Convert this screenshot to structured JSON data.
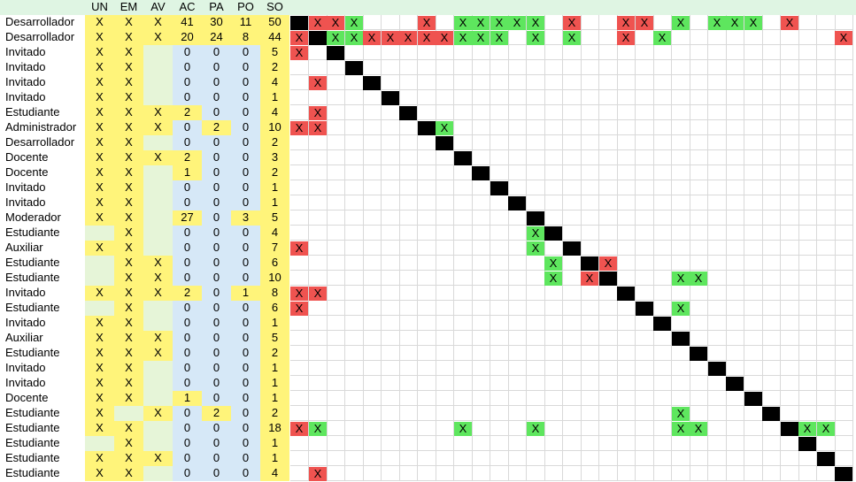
{
  "colors": {
    "header_bg": "#dff5e3",
    "flag_yes": "#fff47a",
    "flag_no": "#e6f5d8",
    "stat_pos": "#fff47a",
    "stat_zero": "#d6e8f7",
    "so_col": "#fff47a",
    "diag": "#000000",
    "red": "#ef5350",
    "green": "#5ee65e",
    "gridline": "#d9d9d9"
  },
  "headers": [
    "UN",
    "EM",
    "AV",
    "AC",
    "PA",
    "PO",
    "SO"
  ],
  "rows": [
    {
      "role": "Desarrollador",
      "un": "X",
      "em": "X",
      "av": "X",
      "ac": "41",
      "pa": "30",
      "po": "11",
      "so": "50"
    },
    {
      "role": "Desarrollador",
      "un": "X",
      "em": "X",
      "av": "X",
      "ac": "20",
      "pa": "24",
      "po": "8",
      "so": "44"
    },
    {
      "role": "Invitado",
      "un": "X",
      "em": "X",
      "av": "",
      "ac": "0",
      "pa": "0",
      "po": "0",
      "so": "5"
    },
    {
      "role": "Invitado",
      "un": "X",
      "em": "X",
      "av": "",
      "ac": "0",
      "pa": "0",
      "po": "0",
      "so": "2"
    },
    {
      "role": "Invitado",
      "un": "X",
      "em": "X",
      "av": "",
      "ac": "0",
      "pa": "0",
      "po": "0",
      "so": "4"
    },
    {
      "role": "Invitado",
      "un": "X",
      "em": "X",
      "av": "",
      "ac": "0",
      "pa": "0",
      "po": "0",
      "so": "1"
    },
    {
      "role": "Estudiante",
      "un": "X",
      "em": "X",
      "av": "X",
      "ac": "2",
      "pa": "0",
      "po": "0",
      "so": "4"
    },
    {
      "role": "Administrador",
      "un": "X",
      "em": "X",
      "av": "X",
      "ac": "0",
      "pa": "2",
      "po": "0",
      "so": "10"
    },
    {
      "role": "Desarrollador",
      "un": "X",
      "em": "X",
      "av": "",
      "ac": "0",
      "pa": "0",
      "po": "0",
      "so": "2"
    },
    {
      "role": "Docente",
      "un": "X",
      "em": "X",
      "av": "X",
      "ac": "2",
      "pa": "0",
      "po": "0",
      "so": "3"
    },
    {
      "role": "Docente",
      "un": "X",
      "em": "X",
      "av": "",
      "ac": "1",
      "pa": "0",
      "po": "0",
      "so": "2"
    },
    {
      "role": "Invitado",
      "un": "X",
      "em": "X",
      "av": "",
      "ac": "0",
      "pa": "0",
      "po": "0",
      "so": "1"
    },
    {
      "role": "Invitado",
      "un": "X",
      "em": "X",
      "av": "",
      "ac": "0",
      "pa": "0",
      "po": "0",
      "so": "1"
    },
    {
      "role": "Moderador",
      "un": "X",
      "em": "X",
      "av": "",
      "ac": "27",
      "pa": "0",
      "po": "3",
      "so": "5"
    },
    {
      "role": "Estudiante",
      "un": "",
      "em": "X",
      "av": "",
      "ac": "0",
      "pa": "0",
      "po": "0",
      "so": "4"
    },
    {
      "role": "Auxiliar",
      "un": "X",
      "em": "X",
      "av": "",
      "ac": "0",
      "pa": "0",
      "po": "0",
      "so": "7"
    },
    {
      "role": "Estudiante",
      "un": "",
      "em": "X",
      "av": "X",
      "ac": "0",
      "pa": "0",
      "po": "0",
      "so": "6"
    },
    {
      "role": "Estudiante",
      "un": "",
      "em": "X",
      "av": "X",
      "ac": "0",
      "pa": "0",
      "po": "0",
      "so": "10"
    },
    {
      "role": "Invitado",
      "un": "X",
      "em": "X",
      "av": "X",
      "ac": "2",
      "pa": "0",
      "po": "1",
      "so": "8"
    },
    {
      "role": "Estudiante",
      "un": "",
      "em": "X",
      "av": "",
      "ac": "0",
      "pa": "0",
      "po": "0",
      "so": "6"
    },
    {
      "role": "Invitado",
      "un": "X",
      "em": "X",
      "av": "",
      "ac": "0",
      "pa": "0",
      "po": "0",
      "so": "1"
    },
    {
      "role": "Auxiliar",
      "un": "X",
      "em": "X",
      "av": "X",
      "ac": "0",
      "pa": "0",
      "po": "0",
      "so": "5"
    },
    {
      "role": "Estudiante",
      "un": "X",
      "em": "X",
      "av": "X",
      "ac": "0",
      "pa": "0",
      "po": "0",
      "so": "2"
    },
    {
      "role": "Invitado",
      "un": "X",
      "em": "X",
      "av": "",
      "ac": "0",
      "pa": "0",
      "po": "0",
      "so": "1"
    },
    {
      "role": "Invitado",
      "un": "X",
      "em": "X",
      "av": "",
      "ac": "0",
      "pa": "0",
      "po": "0",
      "so": "1"
    },
    {
      "role": "Docente",
      "un": "X",
      "em": "X",
      "av": "",
      "ac": "1",
      "pa": "0",
      "po": "0",
      "so": "1"
    },
    {
      "role": "Estudiante",
      "un": "X",
      "em": "",
      "av": "X",
      "ac": "0",
      "pa": "2",
      "po": "0",
      "so": "2"
    },
    {
      "role": "Estudiante",
      "un": "X",
      "em": "X",
      "av": "",
      "ac": "0",
      "pa": "0",
      "po": "0",
      "so": "18"
    },
    {
      "role": "Estudiante",
      "un": "",
      "em": "X",
      "av": "",
      "ac": "0",
      "pa": "0",
      "po": "0",
      "so": "1"
    },
    {
      "role": "Estudiante",
      "un": "X",
      "em": "X",
      "av": "X",
      "ac": "0",
      "pa": "0",
      "po": "0",
      "so": "1"
    },
    {
      "role": "Estudiante",
      "un": "X",
      "em": "X",
      "av": "",
      "ac": "0",
      "pa": "0",
      "po": "0",
      "so": "4"
    }
  ],
  "matrix": {
    "mark_text": "X",
    "rows": [
      {
        "diag": 0,
        "red": [
          1,
          2,
          7,
          15,
          18,
          19,
          27
        ],
        "green": [
          3,
          9,
          10,
          11,
          12,
          13,
          21,
          23,
          24,
          25
        ]
      },
      {
        "diag": 1,
        "red": [
          0,
          4,
          5,
          6,
          7,
          8,
          18,
          30
        ],
        "green": [
          2,
          3,
          9,
          10,
          11,
          13,
          15,
          20
        ]
      },
      {
        "diag": 2,
        "red": [
          0
        ],
        "green": []
      },
      {
        "diag": 3,
        "red": [],
        "green": []
      },
      {
        "diag": 4,
        "red": [
          1
        ],
        "green": []
      },
      {
        "diag": 5,
        "red": [],
        "green": []
      },
      {
        "diag": 6,
        "red": [
          1
        ],
        "green": []
      },
      {
        "diag": 7,
        "red": [
          0,
          1
        ],
        "green": [
          8
        ]
      },
      {
        "diag": 8,
        "red": [],
        "green": []
      },
      {
        "diag": 9,
        "red": [],
        "green": []
      },
      {
        "diag": 10,
        "red": [],
        "green": []
      },
      {
        "diag": 11,
        "red": [],
        "green": []
      },
      {
        "diag": 12,
        "red": [],
        "green": []
      },
      {
        "diag": 13,
        "red": [],
        "green": []
      },
      {
        "diag": 14,
        "red": [],
        "green": [
          13
        ]
      },
      {
        "diag": 15,
        "red": [
          0
        ],
        "green": [
          13
        ]
      },
      {
        "diag": 16,
        "red": [
          17
        ],
        "green": [
          14
        ]
      },
      {
        "diag": 17,
        "red": [
          16
        ],
        "green": [
          14,
          21,
          22
        ]
      },
      {
        "diag": 18,
        "red": [
          0,
          1
        ],
        "green": []
      },
      {
        "diag": 19,
        "red": [
          0
        ],
        "green": [
          21
        ]
      },
      {
        "diag": 20,
        "red": [],
        "green": []
      },
      {
        "diag": 21,
        "red": [],
        "green": []
      },
      {
        "diag": 22,
        "red": [],
        "green": []
      },
      {
        "diag": 23,
        "red": [],
        "green": []
      },
      {
        "diag": 24,
        "red": [],
        "green": []
      },
      {
        "diag": 25,
        "red": [],
        "green": []
      },
      {
        "diag": 26,
        "red": [],
        "green": [
          21
        ]
      },
      {
        "diag": 27,
        "red": [
          0
        ],
        "green": [
          1,
          9,
          13,
          21,
          22,
          28,
          29
        ]
      },
      {
        "diag": 28,
        "red": [],
        "green": []
      },
      {
        "diag": 29,
        "red": [],
        "green": []
      },
      {
        "diag": 30,
        "red": [
          1
        ],
        "green": []
      }
    ]
  }
}
